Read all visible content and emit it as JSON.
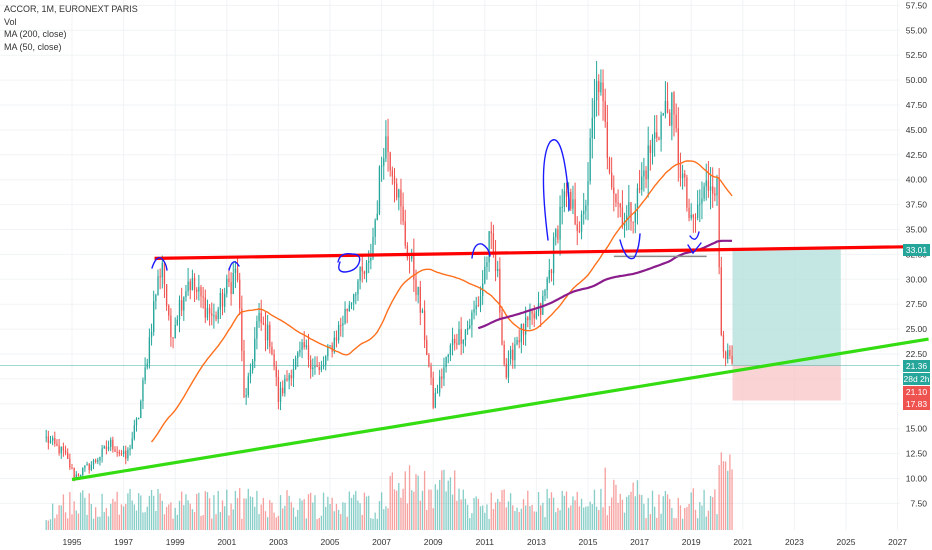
{
  "legend": {
    "title": "ACCOR, 1M, EURONEXT PARIS",
    "vol": "Vol",
    "ma200": "MA (200, close)",
    "ma50": "MA (50, close)"
  },
  "colors": {
    "up": "#26a69a",
    "down": "#ef5350",
    "ma50": "#ff6f1c",
    "ma200": "#8b1c8c",
    "resistance": "#ff0000",
    "support": "#33dd11",
    "tp_zone": "#b2dfdb",
    "sl_zone": "#f8c4c6",
    "annotation": "#1a1aff"
  },
  "price_axis": {
    "ticks": [
      "57.50",
      "55.00",
      "52.50",
      "50.00",
      "47.50",
      "45.00",
      "42.50",
      "40.00",
      "37.50",
      "35.00",
      "32.50",
      "30.00",
      "27.50",
      "25.00",
      "22.50",
      "20.00",
      "17.50",
      "15.00",
      "12.50",
      "10.00",
      "7.50"
    ],
    "badges": [
      {
        "label": "33.01",
        "color": "#26a69a"
      },
      {
        "label": "21.36",
        "color": "#26a69a"
      },
      {
        "label": "28d 2h",
        "color": "#26a69a"
      },
      {
        "label": "21.10",
        "color": "#ef5350"
      },
      {
        "label": "17.83",
        "color": "#ef5350"
      }
    ]
  },
  "time_axis": {
    "ticks": [
      "1995",
      "1997",
      "1999",
      "2001",
      "2003",
      "2005",
      "2007",
      "2009",
      "2011",
      "2013",
      "2015",
      "2017",
      "2019",
      "2021",
      "2023",
      "2025",
      "2027"
    ]
  },
  "chart_data": {
    "type": "candlestick",
    "interval": "1M",
    "ylim": [
      6,
      58
    ],
    "xlim": [
      1993.5,
      2028.2
    ],
    "price_anchors": [
      [
        1994.0,
        14
      ],
      [
        1994.7,
        12.5
      ],
      [
        1995.1,
        10.2
      ],
      [
        1995.8,
        11.5
      ],
      [
        1996.5,
        13.5
      ],
      [
        1997.1,
        12
      ],
      [
        1997.6,
        16.5
      ],
      [
        1997.9,
        22
      ],
      [
        1998.2,
        28
      ],
      [
        1998.5,
        32
      ],
      [
        1998.8,
        24
      ],
      [
        1999.1,
        27
      ],
      [
        1999.5,
        30
      ],
      [
        2000.0,
        28
      ],
      [
        2000.5,
        26
      ],
      [
        2001.0,
        29
      ],
      [
        2001.4,
        31
      ],
      [
        2001.7,
        17
      ],
      [
        2002.2,
        26
      ],
      [
        2002.7,
        24
      ],
      [
        2003.0,
        18
      ],
      [
        2003.5,
        21
      ],
      [
        2004.0,
        23
      ],
      [
        2004.6,
        20.5
      ],
      [
        2005.0,
        23
      ],
      [
        2005.5,
        26
      ],
      [
        2006.0,
        29.5
      ],
      [
        2006.5,
        31
      ],
      [
        2006.8,
        37
      ],
      [
        2007.1,
        44.5
      ],
      [
        2007.5,
        41
      ],
      [
        2007.9,
        34
      ],
      [
        2008.3,
        30
      ],
      [
        2008.7,
        24
      ],
      [
        2009.0,
        17.5
      ],
      [
        2009.4,
        21
      ],
      [
        2009.8,
        24
      ],
      [
        2010.3,
        25
      ],
      [
        2010.8,
        28
      ],
      [
        2011.2,
        34
      ],
      [
        2011.5,
        30
      ],
      [
        2011.8,
        20
      ],
      [
        2012.2,
        24
      ],
      [
        2012.7,
        25.5
      ],
      [
        2013.2,
        27
      ],
      [
        2013.6,
        32
      ],
      [
        2014.0,
        38
      ],
      [
        2014.5,
        36.5
      ],
      [
        2014.8,
        35
      ],
      [
        2015.2,
        46
      ],
      [
        2015.4,
        50.5
      ],
      [
        2015.7,
        44
      ],
      [
        2016.1,
        38
      ],
      [
        2016.5,
        36
      ],
      [
        2016.9,
        38
      ],
      [
        2017.3,
        42
      ],
      [
        2017.8,
        46
      ],
      [
        2018.2,
        47.5
      ],
      [
        2018.6,
        41
      ],
      [
        2019.0,
        35
      ],
      [
        2019.4,
        38
      ],
      [
        2019.8,
        40.5
      ],
      [
        2020.0,
        39
      ],
      [
        2020.15,
        25
      ],
      [
        2020.4,
        22
      ],
      [
        2020.6,
        21.4
      ]
    ],
    "volume_scale": [
      0,
      30
    ],
    "lines": [
      {
        "name": "resistance",
        "from": [
          1998.2,
          32.1
        ],
        "to": [
          2028.2,
          33.3
        ]
      },
      {
        "name": "support",
        "from": [
          1995.0,
          9.9
        ],
        "to": [
          2028.2,
          24.0
        ]
      }
    ],
    "position": {
      "entry": 21.36,
      "take_profit": 33.01,
      "stop": 17.83,
      "x_from": 2020.6,
      "x_to": 2024.8
    },
    "grey_levels": [
      {
        "from": [
          2016.0,
          32.3
        ],
        "to": [
          2019.6,
          32.3
        ]
      }
    ]
  }
}
